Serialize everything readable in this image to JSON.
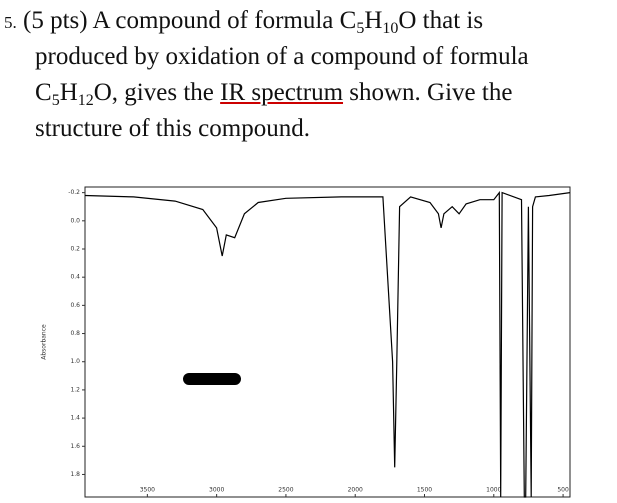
{
  "question": {
    "number": "5.",
    "line1": [
      "(5 pts) A compound of formula C",
      "5",
      "H",
      "10",
      "O that is"
    ],
    "line2": [
      "produced by oxidation of a compound of formula"
    ],
    "line3": [
      "C",
      "5",
      "H",
      "12",
      "O, gives the ",
      "IR spectrum",
      " shown. Give the"
    ],
    "line4": [
      "structure of this compound."
    ]
  },
  "chart_data": {
    "type": "line",
    "y_label": "Absorbance",
    "y_inverted": true,
    "x_reversed": true,
    "color": "#000000",
    "x": [
      3950,
      3600,
      3300,
      3100,
      3000,
      2960,
      2930,
      2870,
      2800,
      2700,
      2500,
      2100,
      1800,
      1730,
      1715,
      1700,
      1680,
      1600,
      1460,
      1400,
      1380,
      1360,
      1300,
      1250,
      1200,
      1100,
      1000,
      960,
      950,
      940,
      800,
      780,
      770,
      750,
      730,
      720,
      700,
      600,
      450
    ],
    "values": [
      -0.18,
      -0.17,
      -0.14,
      -0.08,
      0.05,
      0.25,
      0.1,
      0.12,
      -0.05,
      -0.13,
      -0.16,
      -0.17,
      -0.17,
      1.0,
      1.75,
      1.0,
      -0.1,
      -0.17,
      -0.13,
      -0.05,
      0.05,
      -0.05,
      -0.1,
      -0.05,
      -0.12,
      -0.15,
      -0.15,
      -0.2,
      1.96,
      -0.2,
      -0.15,
      1.96,
      1.96,
      -0.1,
      1.96,
      -0.1,
      -0.17,
      -0.18,
      -0.2
    ],
    "xlim": [
      3950,
      450
    ],
    "ylim": [
      -0.24,
      1.96
    ],
    "xticks": [
      3500,
      3000,
      2500,
      2000,
      1500,
      1000,
      500
    ],
    "yticks": [
      -0.2,
      {
        "value": 0,
        "label": "0.0"
      },
      0.2,
      0.4,
      0.6,
      0.8,
      {
        "value": 1,
        "label": "1.0"
      },
      1.2,
      1.4,
      1.6,
      1.8
    ]
  }
}
